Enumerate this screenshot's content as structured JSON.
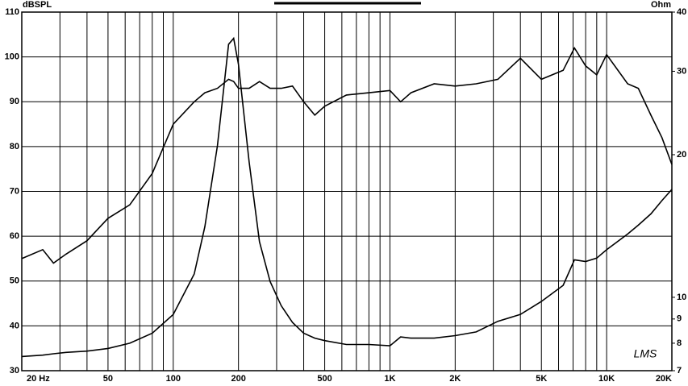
{
  "chart_data": {
    "type": "line",
    "y_label": "dBSPL",
    "y2_label": "Ohm",
    "annotation": "LMS",
    "x": [
      20,
      25,
      28,
      32,
      40,
      50,
      63,
      80,
      100,
      125,
      140,
      160,
      180,
      190,
      200,
      224,
      250,
      280,
      315,
      355,
      400,
      450,
      500,
      630,
      800,
      1000,
      1120,
      1250,
      1600,
      2000,
      2500,
      3150,
      4000,
      5000,
      6300,
      7100,
      8000,
      9000,
      10000,
      12500,
      14000,
      16000,
      18000,
      20000
    ],
    "series": [
      {
        "color": "#000000",
        "values": [
          55,
          57,
          54,
          56,
          59,
          64,
          67,
          74,
          85,
          90,
          92,
          93,
          95,
          94.5,
          93,
          93,
          94.5,
          93,
          93,
          93.5,
          90,
          87,
          89,
          91.5,
          92,
          92.5,
          90,
          92,
          94,
          93.5,
          94,
          95,
          99.7,
          95,
          97,
          102,
          98,
          96,
          100.5,
          94,
          93,
          87,
          82,
          76
        ]
      },
      {
        "color": "#000000",
        "axis": "y2",
        "values": [
          7.5,
          7.55,
          7.6,
          7.65,
          7.7,
          7.8,
          8.0,
          8.4,
          9.2,
          11.2,
          14.1,
          20.9,
          34.2,
          35.2,
          31,
          19.3,
          13.1,
          10.8,
          9.6,
          8.85,
          8.4,
          8.2,
          8.1,
          7.95,
          7.95,
          7.9,
          8.25,
          8.2,
          8.2,
          8.3,
          8.45,
          8.9,
          9.2,
          9.8,
          10.6,
          12.0,
          11.9,
          12.1,
          12.6,
          13.6,
          14.2,
          15.0,
          16.0,
          16.9
        ]
      }
    ],
    "x_log": true,
    "y2_log": true,
    "xlim": [
      20,
      20000
    ],
    "xticks": [
      {
        "value": 20,
        "label": "20 Hz"
      },
      50,
      100,
      200,
      500,
      {
        "value": 1000,
        "label": "1K"
      },
      {
        "value": 2000,
        "label": "2K"
      },
      {
        "value": 5000,
        "label": "5K"
      },
      {
        "value": 10000,
        "label": "10K"
      },
      {
        "value": 20000,
        "label": "20K"
      }
    ],
    "xgrid_minor": [
      30,
      40,
      60,
      70,
      80,
      90,
      300,
      400,
      600,
      700,
      800,
      900,
      3000,
      4000,
      6000,
      7000,
      8000,
      9000
    ],
    "ylim": [
      30,
      110
    ],
    "yticks": [
      30,
      40,
      50,
      60,
      70,
      80,
      90,
      100,
      110
    ],
    "y2lim": [
      7,
      40
    ],
    "y2ticks": [
      7,
      8,
      9,
      10,
      20,
      30,
      40
    ],
    "grid": true
  }
}
